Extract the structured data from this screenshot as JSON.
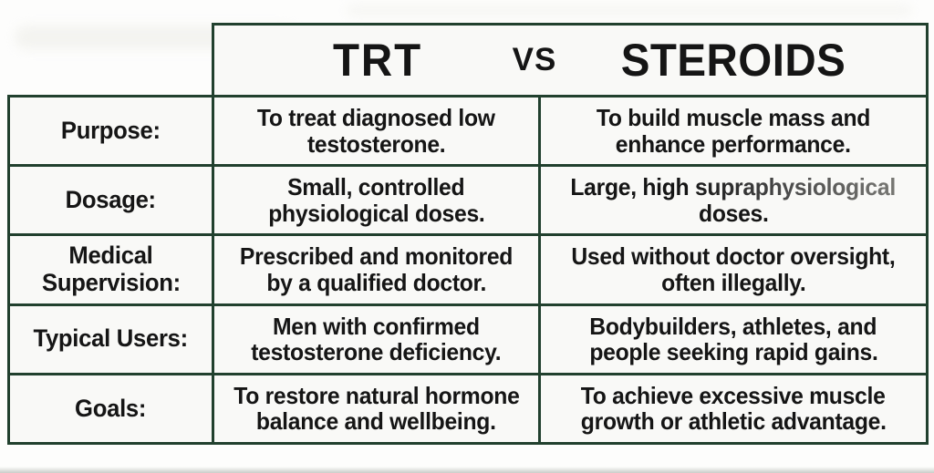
{
  "title": "TRT vs STEROIDS comparison table",
  "colors": {
    "border_green": "#21402e",
    "cell_background": "#f9f9f7",
    "page_background": "#fdfdfc",
    "text": "#151515",
    "faded_text": "#6a6a6a"
  },
  "header": {
    "left_title": "TRT",
    "vs_label": "vs",
    "right_title": "STEROIDS"
  },
  "layout_rows": [
    {
      "label_lines": [
        "Purpose:"
      ],
      "trt_lines": [
        "To treat diagnosed low",
        "testosterone."
      ],
      "steroids_lines": [
        "To build muscle mass and",
        "enhance performance."
      ]
    },
    {
      "label_lines": [
        "Dosage:"
      ],
      "trt_lines": [
        "Small, controlled",
        "physiological doses."
      ],
      "steroids_lines": [
        "Large, high supraphysiological",
        "doses."
      ],
      "steroids_fade_substring": "supraphysiological"
    },
    {
      "label_lines": [
        "Medical",
        "Supervision:"
      ],
      "trt_lines": [
        "Prescribed and monitored",
        "by a qualified doctor."
      ],
      "steroids_lines": [
        "Used without doctor oversight,",
        "often illegally."
      ]
    },
    {
      "label_lines": [
        "Typical Users:"
      ],
      "trt_lines": [
        "Men with confirmed",
        "testosterone deficiency."
      ],
      "steroids_lines": [
        "Bodybuilders, athletes, and",
        "people seeking rapid gains."
      ]
    },
    {
      "label_lines": [
        "Goals:"
      ],
      "trt_lines": [
        "To restore natural hormone",
        "balance and wellbeing."
      ],
      "steroids_lines": [
        "To achieve excessive muscle",
        "growth or athletic advantage."
      ]
    }
  ],
  "chart_data": {
    "type": "table",
    "title": "TRT vs STEROIDS",
    "columns": [
      "",
      "TRT",
      "STEROIDS"
    ],
    "rows": [
      [
        "Purpose:",
        "To treat diagnosed low testosterone.",
        "To build muscle mass and enhance performance."
      ],
      [
        "Dosage:",
        "Small, controlled physiological doses.",
        "Large, high supraphysiological doses."
      ],
      [
        "Medical Supervision:",
        "Prescribed and monitored by a qualified doctor.",
        "Used without doctor oversight, often illegally."
      ],
      [
        "Typical Users:",
        "Men with confirmed testosterone deficiency.",
        "Bodybuilders, athletes, and people seeking rapid gains."
      ],
      [
        "Goals:",
        "To restore natural hormone balance and wellbeing.",
        "To achieve excessive muscle growth or athletic advantage."
      ]
    ]
  }
}
